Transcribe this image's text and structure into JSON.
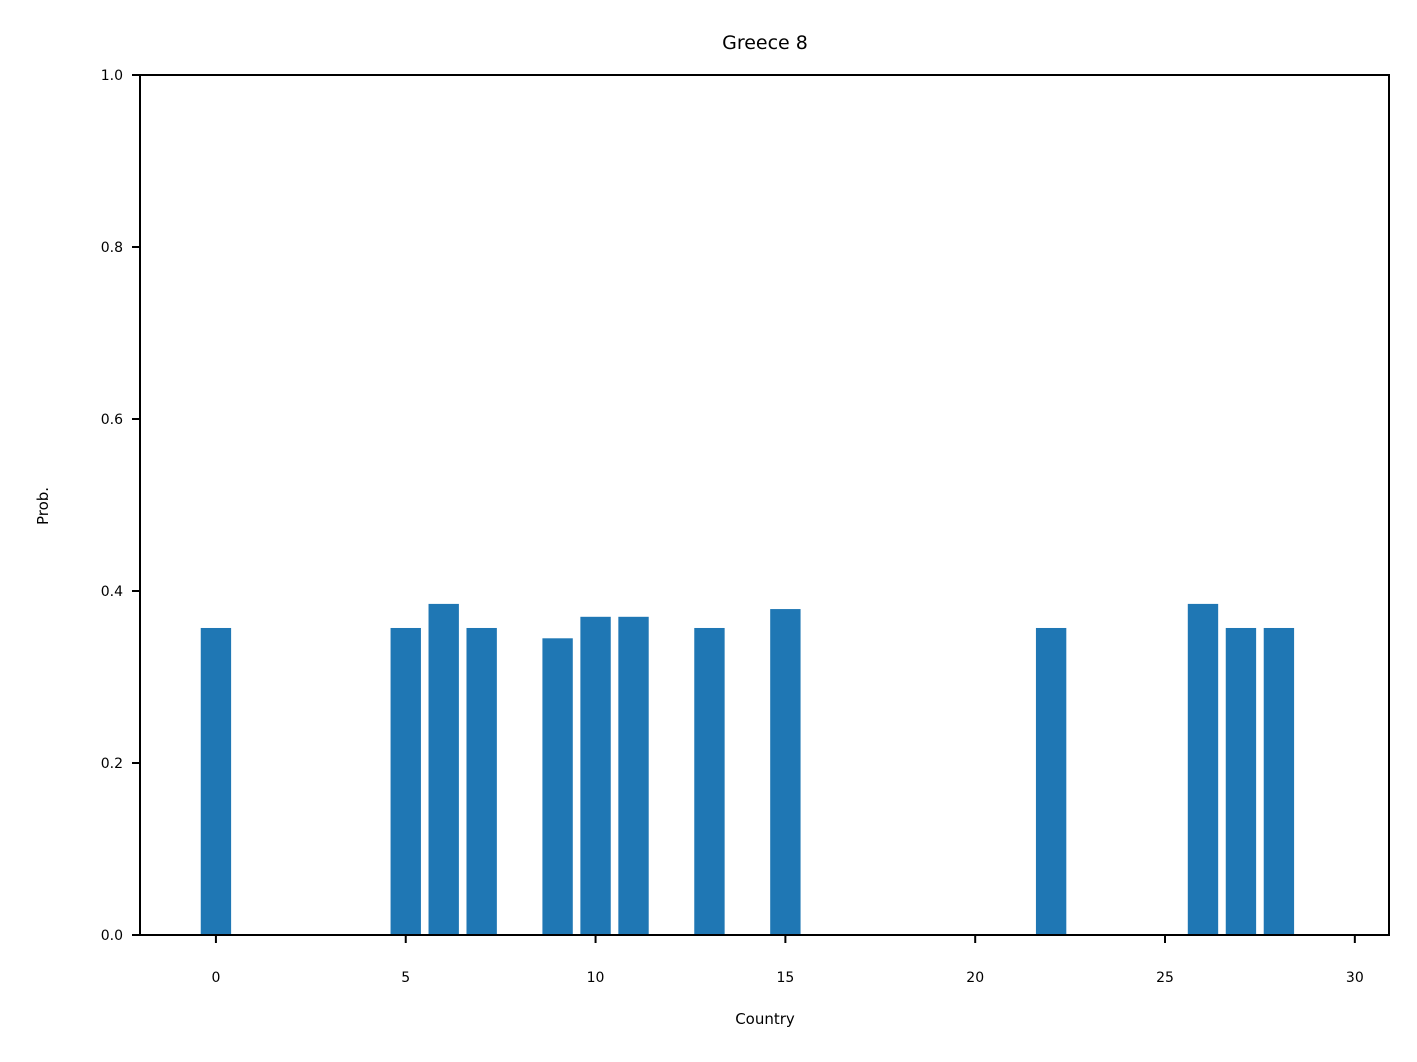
{
  "chart_data": {
    "type": "bar",
    "title": "Greece 8",
    "xlabel": "Country",
    "ylabel": "Prob.",
    "xlim": [
      -2,
      30.9
    ],
    "ylim": [
      0,
      1
    ],
    "xticks": [
      0,
      5,
      10,
      15,
      20,
      25,
      30
    ],
    "yticks": [
      0.0,
      0.2,
      0.4,
      0.6,
      0.8,
      1.0
    ],
    "grid": false,
    "bar_color": "#1f77b4",
    "bar_width": 0.8,
    "x": [
      0,
      5,
      6,
      7,
      9,
      10,
      11,
      13,
      15,
      22,
      26,
      27,
      28
    ],
    "values": [
      0.357,
      0.357,
      0.385,
      0.357,
      0.345,
      0.37,
      0.37,
      0.357,
      0.379,
      0.357,
      0.385,
      0.357,
      0.357
    ]
  }
}
